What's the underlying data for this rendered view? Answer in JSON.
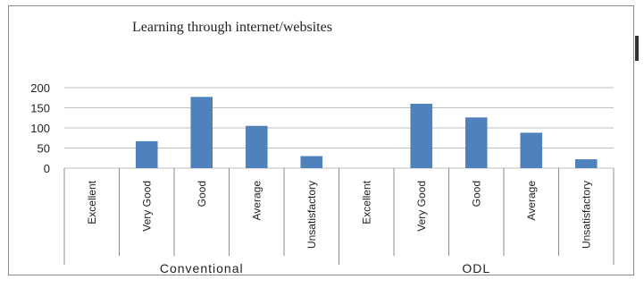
{
  "chart_data": {
    "type": "bar",
    "title": "Learning through internet/websites",
    "xlabel": "",
    "ylabel": "",
    "ylim": [
      0,
      200
    ],
    "yticks": [
      0,
      50,
      100,
      150,
      200
    ],
    "grid": true,
    "legend": "none",
    "bar_color": "#4f81bd",
    "groups": [
      {
        "label": "Conventional",
        "categories": [
          "Excellent",
          "Very Good",
          "Good",
          "Average",
          "Unsatisfactory"
        ],
        "values": [
          0,
          67,
          177,
          105,
          30
        ]
      },
      {
        "label": "ODL",
        "categories": [
          "Excellent",
          "Very Good",
          "Good",
          "Average",
          "Unsatisfactory"
        ],
        "values": [
          0,
          160,
          126,
          88,
          22
        ]
      }
    ]
  }
}
